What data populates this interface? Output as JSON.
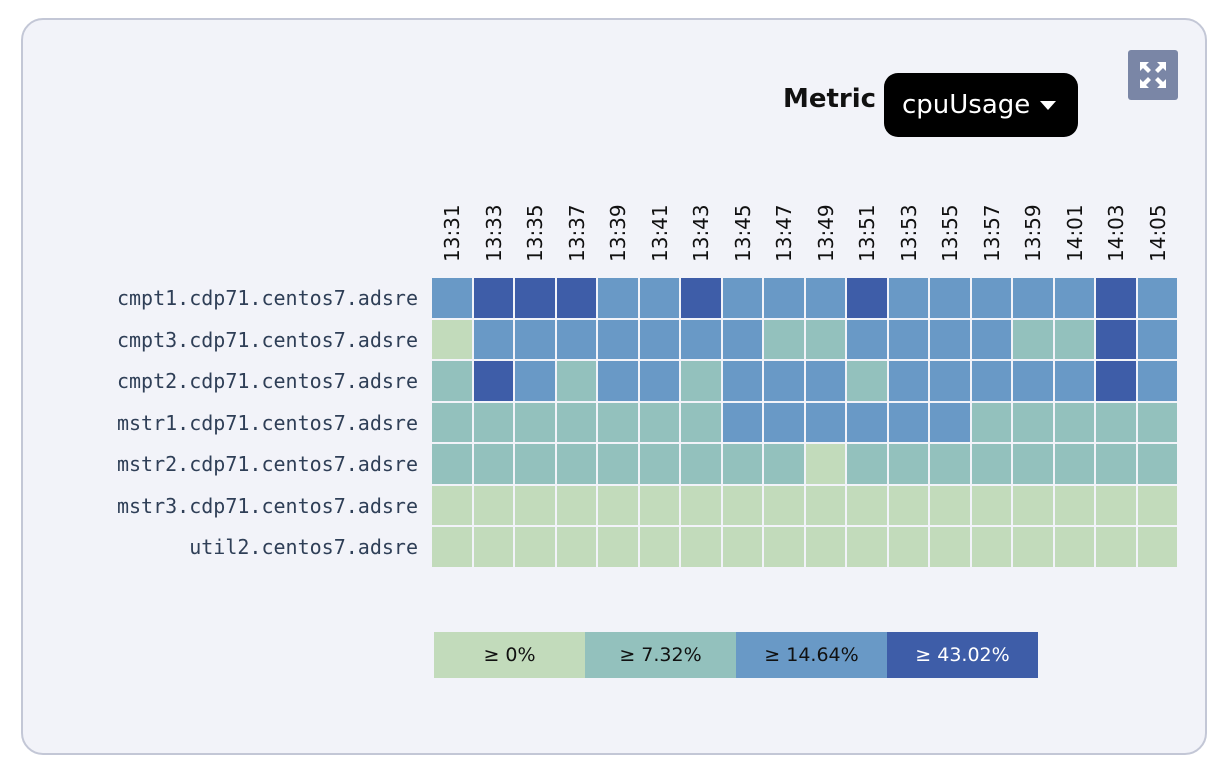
{
  "header": {
    "metric_label": "Metric",
    "metric_value": "cpuUsage"
  },
  "icons": {
    "expand": "expand-icon",
    "caret": "caret-down-icon"
  },
  "colors": {
    "bin0": "#c2dbbb",
    "bin1": "#93c1bd",
    "bin2": "#6999c6",
    "bin3": "#3e5da8",
    "expand_button": "#7a86a6"
  },
  "chart_data": {
    "type": "heatmap",
    "title": "",
    "x": [
      "13:31",
      "13:33",
      "13:35",
      "13:37",
      "13:39",
      "13:41",
      "13:43",
      "13:45",
      "13:47",
      "13:49",
      "13:51",
      "13:53",
      "13:55",
      "13:57",
      "13:59",
      "14:01",
      "14:03",
      "14:05"
    ],
    "y": [
      "cmpt1.cdp71.centos7.adsre",
      "cmpt3.cdp71.centos7.adsre",
      "cmpt2.cdp71.centos7.adsre",
      "mstr1.cdp71.centos7.adsre",
      "mstr2.cdp71.centos7.adsre",
      "mstr3.cdp71.centos7.adsre",
      "util2.centos7.adsre"
    ],
    "bins": [
      0,
      1,
      2,
      3
    ],
    "values": [
      [
        2,
        3,
        3,
        3,
        2,
        2,
        3,
        2,
        2,
        2,
        3,
        2,
        2,
        2,
        2,
        2,
        3,
        2
      ],
      [
        0,
        2,
        2,
        2,
        2,
        2,
        2,
        2,
        1,
        1,
        2,
        2,
        2,
        2,
        1,
        1,
        3,
        2
      ],
      [
        1,
        3,
        2,
        1,
        2,
        2,
        1,
        2,
        2,
        2,
        1,
        2,
        2,
        2,
        2,
        2,
        3,
        2
      ],
      [
        1,
        1,
        1,
        1,
        1,
        1,
        1,
        2,
        2,
        2,
        2,
        2,
        2,
        1,
        1,
        1,
        1,
        1
      ],
      [
        1,
        1,
        1,
        1,
        1,
        1,
        1,
        1,
        1,
        0,
        1,
        1,
        1,
        1,
        1,
        1,
        1,
        1
      ],
      [
        0,
        0,
        0,
        0,
        0,
        0,
        0,
        0,
        0,
        0,
        0,
        0,
        0,
        0,
        0,
        0,
        0,
        0
      ],
      [
        0,
        0,
        0,
        0,
        0,
        0,
        0,
        0,
        0,
        0,
        0,
        0,
        0,
        0,
        0,
        0,
        0,
        0
      ]
    ],
    "legend": [
      {
        "label": "≥ 0%",
        "bin": 0
      },
      {
        "label": "≥ 7.32%",
        "bin": 1
      },
      {
        "label": "≥ 14.64%",
        "bin": 2
      },
      {
        "label": "≥ 43.02%",
        "bin": 3
      }
    ]
  }
}
